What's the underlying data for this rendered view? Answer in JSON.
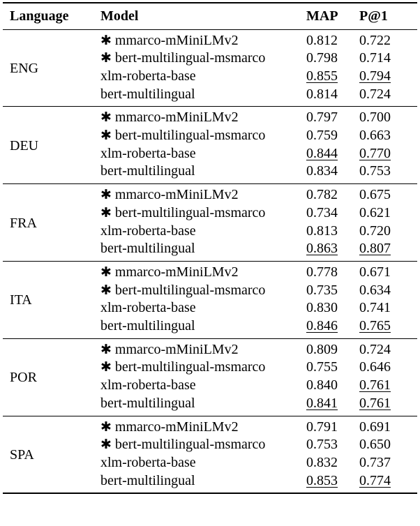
{
  "headers": {
    "language": "Language",
    "model": "Model",
    "map": "MAP",
    "p1": "P@1"
  },
  "star_symbol": "✱",
  "groups": [
    {
      "language": "ENG",
      "rows": [
        {
          "model": "mmarco-mMiniLMv2",
          "star": true,
          "map": "0.812",
          "p1": "0.722",
          "map_u": false,
          "p1_u": false
        },
        {
          "model": "bert-multilingual-msmarco",
          "star": true,
          "map": "0.798",
          "p1": "0.714",
          "map_u": false,
          "p1_u": false
        },
        {
          "model": "xlm-roberta-base",
          "star": false,
          "map": "0.855",
          "p1": "0.794",
          "map_u": true,
          "p1_u": true
        },
        {
          "model": "bert-multilingual",
          "star": false,
          "map": "0.814",
          "p1": "0.724",
          "map_u": false,
          "p1_u": false
        }
      ]
    },
    {
      "language": "DEU",
      "rows": [
        {
          "model": "mmarco-mMiniLMv2",
          "star": true,
          "map": "0.797",
          "p1": "0.700",
          "map_u": false,
          "p1_u": false
        },
        {
          "model": "bert-multilingual-msmarco",
          "star": true,
          "map": "0.759",
          "p1": "0.663",
          "map_u": false,
          "p1_u": false
        },
        {
          "model": "xlm-roberta-base",
          "star": false,
          "map": "0.844",
          "p1": "0.770",
          "map_u": true,
          "p1_u": true
        },
        {
          "model": "bert-multilingual",
          "star": false,
          "map": "0.834",
          "p1": "0.753",
          "map_u": false,
          "p1_u": false
        }
      ]
    },
    {
      "language": "FRA",
      "rows": [
        {
          "model": "mmarco-mMiniLMv2",
          "star": true,
          "map": "0.782",
          "p1": "0.675",
          "map_u": false,
          "p1_u": false
        },
        {
          "model": "bert-multilingual-msmarco",
          "star": true,
          "map": "0.734",
          "p1": "0.621",
          "map_u": false,
          "p1_u": false
        },
        {
          "model": "xlm-roberta-base",
          "star": false,
          "map": "0.813",
          "p1": "0.720",
          "map_u": false,
          "p1_u": false
        },
        {
          "model": "bert-multilingual",
          "star": false,
          "map": "0.863",
          "p1": "0.807",
          "map_u": true,
          "p1_u": true
        }
      ]
    },
    {
      "language": "ITA",
      "rows": [
        {
          "model": "mmarco-mMiniLMv2",
          "star": true,
          "map": "0.778",
          "p1": "0.671",
          "map_u": false,
          "p1_u": false
        },
        {
          "model": "bert-multilingual-msmarco",
          "star": true,
          "map": "0.735",
          "p1": "0.634",
          "map_u": false,
          "p1_u": false
        },
        {
          "model": "xlm-roberta-base",
          "star": false,
          "map": "0.830",
          "p1": "0.741",
          "map_u": false,
          "p1_u": false
        },
        {
          "model": "bert-multilingual",
          "star": false,
          "map": "0.846",
          "p1": "0.765",
          "map_u": true,
          "p1_u": true
        }
      ]
    },
    {
      "language": "POR",
      "rows": [
        {
          "model": "mmarco-mMiniLMv2",
          "star": true,
          "map": "0.809",
          "p1": "0.724",
          "map_u": false,
          "p1_u": false
        },
        {
          "model": "bert-multilingual-msmarco",
          "star": true,
          "map": "0.755",
          "p1": "0.646",
          "map_u": false,
          "p1_u": false
        },
        {
          "model": "xlm-roberta-base",
          "star": false,
          "map": "0.840",
          "p1": "0.761",
          "map_u": false,
          "p1_u": true
        },
        {
          "model": "bert-multilingual",
          "star": false,
          "map": "0.841",
          "p1": "0.761",
          "map_u": true,
          "p1_u": true
        }
      ]
    },
    {
      "language": "SPA",
      "rows": [
        {
          "model": "mmarco-mMiniLMv2",
          "star": true,
          "map": "0.791",
          "p1": "0.691",
          "map_u": false,
          "p1_u": false
        },
        {
          "model": "bert-multilingual-msmarco",
          "star": true,
          "map": "0.753",
          "p1": "0.650",
          "map_u": false,
          "p1_u": false
        },
        {
          "model": "xlm-roberta-base",
          "star": false,
          "map": "0.832",
          "p1": "0.737",
          "map_u": false,
          "p1_u": false
        },
        {
          "model": "bert-multilingual",
          "star": false,
          "map": "0.853",
          "p1": "0.774",
          "map_u": true,
          "p1_u": true
        }
      ]
    }
  ]
}
